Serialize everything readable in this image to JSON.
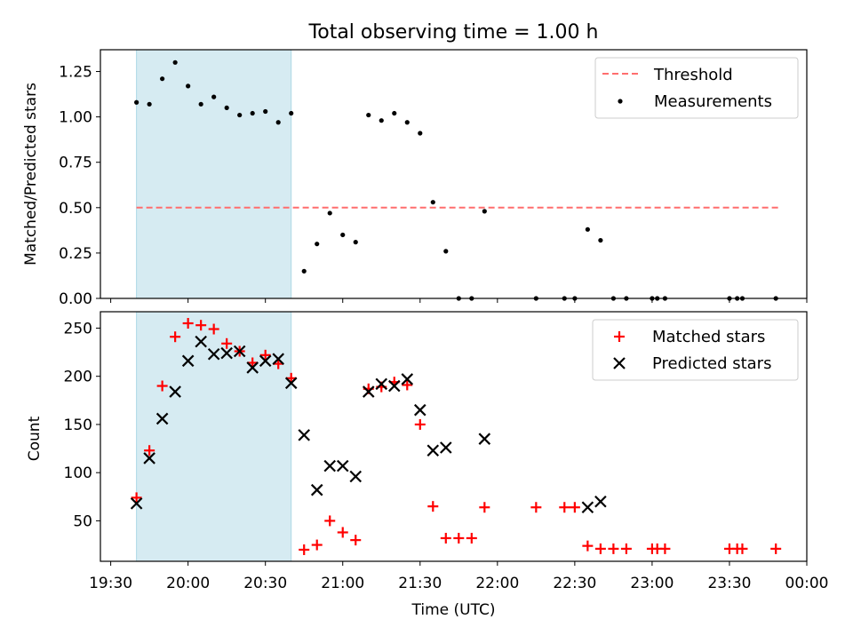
{
  "title": "Total observing time = 1.00 h",
  "colors": {
    "threshold": "#ff6e6e",
    "measurement": "#000000",
    "matched": "#ff0000",
    "predicted": "#000000",
    "span": "#add8e6"
  },
  "chart_data": [
    {
      "type": "scatter",
      "ylabel": "Matched/Predicted stars",
      "xlim": [
        "19:26",
        "00:00"
      ],
      "ylim": [
        0,
        1.37
      ],
      "x_ticks": [
        "19:30",
        "20:00",
        "20:30",
        "21:00",
        "21:30",
        "22:00",
        "22:30",
        "23:00",
        "23:30",
        "00:00"
      ],
      "y_ticks": [
        "0.00",
        "0.25",
        "0.50",
        "0.75",
        "1.00",
        "1.25"
      ],
      "legend_position": "upper right",
      "shaded_span": [
        "19:40",
        "20:40"
      ],
      "threshold": {
        "name": "Threshold",
        "value": 0.5,
        "x_range": [
          "19:40",
          "23:50"
        ]
      },
      "series": [
        {
          "name": "Measurements",
          "points": [
            [
              "19:40",
              1.08
            ],
            [
              "19:45",
              1.07
            ],
            [
              "19:50",
              1.21
            ],
            [
              "19:55",
              1.3
            ],
            [
              "20:00",
              1.17
            ],
            [
              "20:05",
              1.07
            ],
            [
              "20:10",
              1.11
            ],
            [
              "20:15",
              1.05
            ],
            [
              "20:20",
              1.01
            ],
            [
              "20:25",
              1.02
            ],
            [
              "20:30",
              1.03
            ],
            [
              "20:35",
              0.97
            ],
            [
              "20:40",
              1.02
            ],
            [
              "20:45",
              0.15
            ],
            [
              "20:50",
              0.3
            ],
            [
              "20:55",
              0.47
            ],
            [
              "21:00",
              0.35
            ],
            [
              "21:05",
              0.31
            ],
            [
              "21:10",
              1.01
            ],
            [
              "21:15",
              0.98
            ],
            [
              "21:20",
              1.02
            ],
            [
              "21:25",
              0.97
            ],
            [
              "21:30",
              0.91
            ],
            [
              "21:35",
              0.53
            ],
            [
              "21:40",
              0.26
            ],
            [
              "21:45",
              0.0
            ],
            [
              "21:50",
              0.0
            ],
            [
              "21:55",
              0.48
            ],
            [
              "22:15",
              0.0
            ],
            [
              "22:26",
              0.0
            ],
            [
              "22:30",
              0.0
            ],
            [
              "22:35",
              0.38
            ],
            [
              "22:40",
              0.32
            ],
            [
              "22:45",
              0.0
            ],
            [
              "22:50",
              0.0
            ],
            [
              "23:00",
              0.0
            ],
            [
              "23:02",
              0.0
            ],
            [
              "23:05",
              0.0
            ],
            [
              "23:30",
              0.0
            ],
            [
              "23:33",
              0.0
            ],
            [
              "23:35",
              0.0
            ],
            [
              "23:48",
              0.0
            ]
          ]
        }
      ]
    },
    {
      "type": "scatter",
      "xlabel": "Time (UTC)",
      "ylabel": "Count",
      "xlim": [
        "19:26",
        "00:00"
      ],
      "ylim": [
        8,
        267
      ],
      "x_ticks": [
        "19:30",
        "20:00",
        "20:30",
        "21:00",
        "21:30",
        "22:00",
        "22:30",
        "23:00",
        "23:30",
        "00:00"
      ],
      "y_ticks": [
        "50",
        "100",
        "150",
        "200",
        "250"
      ],
      "legend_position": "upper right",
      "shaded_span": [
        "19:40",
        "20:40"
      ],
      "series": [
        {
          "name": "Matched stars",
          "marker": "plus",
          "points": [
            [
              "19:40",
              74
            ],
            [
              "19:45",
              123
            ],
            [
              "19:50",
              190
            ],
            [
              "19:55",
              241
            ],
            [
              "20:00",
              255
            ],
            [
              "20:05",
              253
            ],
            [
              "20:10",
              249
            ],
            [
              "20:15",
              234
            ],
            [
              "20:20",
              226
            ],
            [
              "20:25",
              214
            ],
            [
              "20:30",
              222
            ],
            [
              "20:35",
              213
            ],
            [
              "20:40",
              198
            ],
            [
              "20:45",
              20
            ],
            [
              "20:50",
              25
            ],
            [
              "20:55",
              50
            ],
            [
              "21:00",
              38
            ],
            [
              "21:05",
              30
            ],
            [
              "21:10",
              187
            ],
            [
              "21:15",
              189
            ],
            [
              "21:20",
              194
            ],
            [
              "21:25",
              191
            ],
            [
              "21:30",
              150
            ],
            [
              "21:35",
              65
            ],
            [
              "21:40",
              32
            ],
            [
              "21:45",
              32
            ],
            [
              "21:50",
              32
            ],
            [
              "21:55",
              64
            ],
            [
              "22:15",
              64
            ],
            [
              "22:26",
              64
            ],
            [
              "22:30",
              64
            ],
            [
              "22:35",
              24
            ],
            [
              "22:40",
              21
            ],
            [
              "22:45",
              21
            ],
            [
              "22:50",
              21
            ],
            [
              "23:00",
              21
            ],
            [
              "23:02",
              21
            ],
            [
              "23:05",
              21
            ],
            [
              "23:30",
              21
            ],
            [
              "23:33",
              21
            ],
            [
              "23:35",
              21
            ],
            [
              "23:48",
              21
            ]
          ]
        },
        {
          "name": "Predicted stars",
          "marker": "x",
          "points": [
            [
              "19:40",
              68
            ],
            [
              "19:45",
              115
            ],
            [
              "19:50",
              156
            ],
            [
              "19:55",
              184
            ],
            [
              "20:00",
              216
            ],
            [
              "20:05",
              236
            ],
            [
              "20:10",
              223
            ],
            [
              "20:15",
              224
            ],
            [
              "20:20",
              226
            ],
            [
              "20:25",
              209
            ],
            [
              "20:30",
              216
            ],
            [
              "20:35",
              218
            ],
            [
              "20:40",
              193
            ],
            [
              "20:45",
              139
            ],
            [
              "20:50",
              82
            ],
            [
              "20:55",
              107
            ],
            [
              "21:00",
              107
            ],
            [
              "21:05",
              96
            ],
            [
              "21:10",
              184
            ],
            [
              "21:15",
              192
            ],
            [
              "21:20",
              190
            ],
            [
              "21:25",
              197
            ],
            [
              "21:30",
              165
            ],
            [
              "21:35",
              123
            ],
            [
              "21:40",
              126
            ],
            [
              "21:55",
              135
            ],
            [
              "22:35",
              64
            ],
            [
              "22:40",
              70
            ]
          ]
        }
      ]
    }
  ]
}
